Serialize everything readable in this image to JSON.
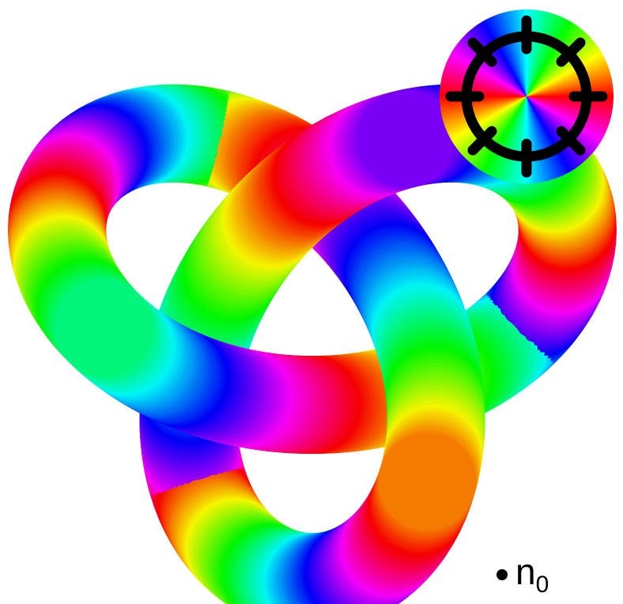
{
  "label": {
    "main": "n",
    "subscript": "0"
  }
}
